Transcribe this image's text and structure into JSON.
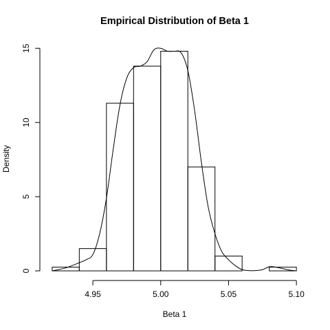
{
  "chart_data": {
    "type": "bar",
    "title": "Empirical Distribution of Beta 1",
    "xlabel": "Beta 1",
    "ylabel": "Density",
    "xlim": [
      4.915,
      5.105
    ],
    "ylim": [
      0,
      15.15
    ],
    "x_ticks": [
      4.95,
      5.0,
      5.05,
      5.1
    ],
    "x_tick_labels": [
      "4.95",
      "5.00",
      "5.05",
      "5.10"
    ],
    "y_ticks": [
      0,
      5,
      10,
      15
    ],
    "y_tick_labels": [
      "0",
      "5",
      "10",
      "15"
    ],
    "grid": false,
    "histogram": {
      "bins": [
        {
          "start": 4.92,
          "end": 4.94,
          "density": 0.25
        },
        {
          "start": 4.94,
          "end": 4.96,
          "density": 1.5
        },
        {
          "start": 4.96,
          "end": 4.98,
          "density": 11.3
        },
        {
          "start": 4.98,
          "end": 5.0,
          "density": 13.8
        },
        {
          "start": 5.0,
          "end": 5.02,
          "density": 14.8
        },
        {
          "start": 5.02,
          "end": 5.04,
          "density": 7.0
        },
        {
          "start": 5.04,
          "end": 5.06,
          "density": 1.0
        },
        {
          "start": 5.06,
          "end": 5.08,
          "density": 0.0
        },
        {
          "start": 5.08,
          "end": 5.1,
          "density": 0.25
        }
      ]
    },
    "density_curve": {
      "x": [
        4.92,
        4.93,
        4.94,
        4.945,
        4.95,
        4.955,
        4.96,
        4.965,
        4.97,
        4.975,
        4.98,
        4.985,
        4.99,
        4.995,
        5.0,
        5.005,
        5.01,
        5.015,
        5.02,
        5.025,
        5.03,
        5.035,
        5.04,
        5.045,
        5.05,
        5.055,
        5.06,
        5.065,
        5.07,
        5.075,
        5.08,
        5.085,
        5.09,
        5.095,
        5.1
      ],
      "y": [
        0.0,
        0.2,
        0.55,
        0.75,
        1.1,
        2.5,
        4.9,
        8.2,
        11.2,
        13.0,
        13.7,
        13.8,
        14.1,
        14.9,
        15.0,
        14.8,
        14.8,
        14.7,
        13.5,
        10.8,
        7.3,
        4.3,
        2.5,
        1.3,
        0.75,
        0.35,
        0.08,
        0.02,
        0.02,
        0.08,
        0.28,
        0.25,
        0.15,
        0.05,
        0.0
      ]
    }
  }
}
